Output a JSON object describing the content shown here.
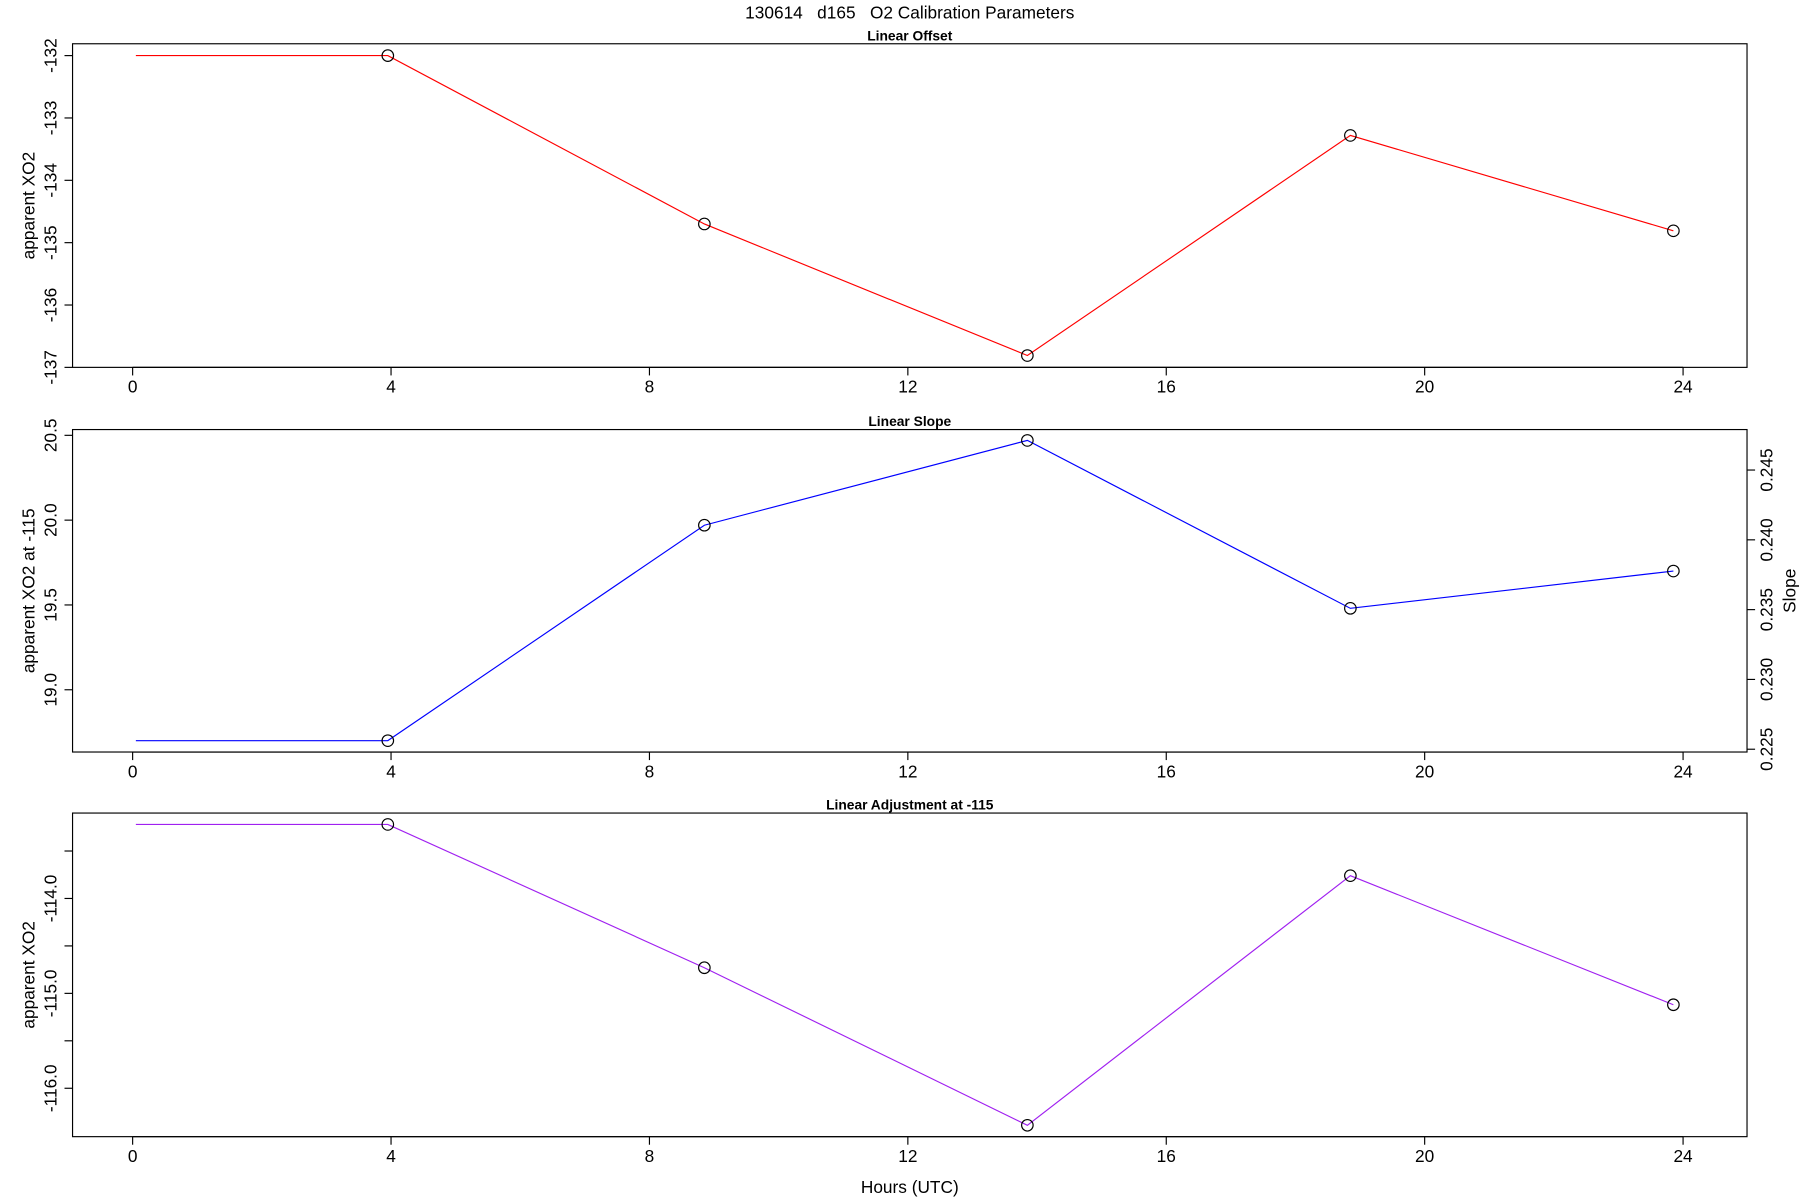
{
  "title": "130614   d165   O2 Calibration Parameters",
  "chart_data": [
    {
      "type": "line",
      "title": "Linear Offset",
      "y_label": "apparent XO2",
      "x": [
        0.05,
        3.95,
        8.85,
        13.85,
        18.85,
        23.85
      ],
      "xlim": [
        -0.93,
        24.99
      ],
      "xticks": [
        0,
        4,
        8,
        12,
        16,
        20,
        24
      ],
      "ylim": [
        -137.0,
        -131.81
      ],
      "yticks": [
        -137,
        -136,
        -135,
        -134,
        -133,
        -132
      ],
      "series": [
        {
          "color": "#ff0000",
          "values": [
            -132.0,
            -132.0,
            -134.7,
            -136.81,
            -133.28,
            -134.81
          ],
          "markers": [
            false,
            true,
            true,
            true,
            true,
            true
          ]
        }
      ]
    },
    {
      "type": "line",
      "title": "Linear Slope",
      "y_label": "apparent XO2 at -115",
      "y2_label": "Slope",
      "x": [
        0.05,
        3.95,
        8.85,
        13.85,
        18.85,
        23.85
      ],
      "xlim": [
        -0.93,
        24.99
      ],
      "xticks": [
        0,
        4,
        8,
        12,
        16,
        20,
        24
      ],
      "ylim": [
        18.633,
        20.534
      ],
      "yticks": [
        {
          "value": 19,
          "label": "19.0"
        },
        19.5,
        {
          "value": 20,
          "label": "20.0"
        },
        20.5
      ],
      "y2lim": [
        0.2248,
        0.2479
      ],
      "y2ticks": [
        0.225,
        {
          "value": 0.23,
          "label": "0.230"
        },
        0.235,
        {
          "value": 0.24,
          "label": "0.240"
        },
        0.245
      ],
      "series": [
        {
          "color": "#0000ff",
          "values": [
            18.7,
            18.7,
            19.97,
            20.47,
            19.48,
            19.7
          ],
          "markers": [
            false,
            true,
            true,
            true,
            true,
            true
          ]
        }
      ]
    },
    {
      "type": "line",
      "title": "Linear Adjustment at -115",
      "y_label": "apparent XO2",
      "x_label": "Hours (UTC)",
      "x": [
        0.05,
        3.95,
        8.85,
        13.85,
        18.85,
        23.85
      ],
      "xlim": [
        -0.93,
        24.99
      ],
      "xticks": [
        0,
        4,
        8,
        12,
        16,
        20,
        24
      ],
      "ylim": [
        -116.51,
        -113.1
      ],
      "yticks": [
        {
          "value": -116,
          "label": "-116.0"
        },
        {
          "value": -115,
          "label": "-115.0"
        },
        {
          "value": -114,
          "label": "-114.0"
        }
      ],
      "yminor_ticks": [
        -115.5,
        -114.5,
        -113.5
      ],
      "series": [
        {
          "color": "#a020f0",
          "values": [
            -113.22,
            -113.22,
            -114.73,
            -116.39,
            -113.76,
            -115.12
          ],
          "markers": [
            false,
            true,
            true,
            true,
            true,
            true
          ]
        }
      ]
    }
  ]
}
